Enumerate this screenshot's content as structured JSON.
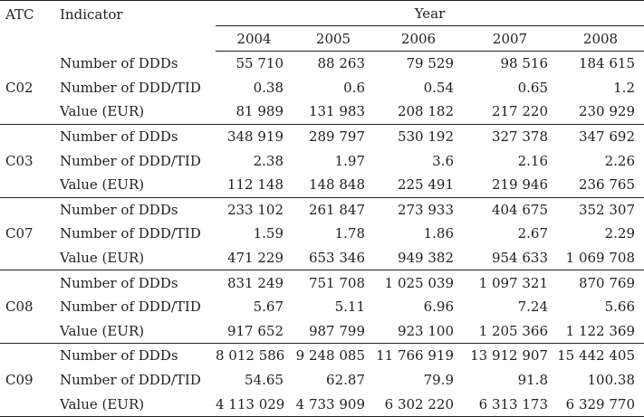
{
  "header": {
    "atc": "ATC",
    "indicator": "Indicator",
    "year": "Year",
    "years": [
      "2004",
      "2005",
      "2006",
      "2007",
      "2008"
    ]
  },
  "groups": [
    {
      "atc": "C02",
      "rows": [
        {
          "indicator": "Number of DDDs",
          "values": [
            "55 710",
            "88 263",
            "79 529",
            "98 516",
            "184 615"
          ]
        },
        {
          "indicator": "Number of DDD/TID",
          "values": [
            "0.38",
            "0.6",
            "0.54",
            "0.65",
            "1.2"
          ]
        },
        {
          "indicator": "Value (EUR)",
          "values": [
            "81 989",
            "131 983",
            "208 182",
            "217 220",
            "230 929"
          ]
        }
      ]
    },
    {
      "atc": "C03",
      "rows": [
        {
          "indicator": "Number of DDDs",
          "values": [
            "348 919",
            "289 797",
            "530 192",
            "327 378",
            "347 692"
          ]
        },
        {
          "indicator": "Number of DDD/TID",
          "values": [
            "2.38",
            "1.97",
            "3.6",
            "2.16",
            "2.26"
          ]
        },
        {
          "indicator": "Value (EUR)",
          "values": [
            "112 148",
            "148 848",
            "225 491",
            "219 946",
            "236 765"
          ]
        }
      ]
    },
    {
      "atc": "C07",
      "rows": [
        {
          "indicator": "Number of DDDs",
          "values": [
            "233 102",
            "261 847",
            "273 933",
            "404 675",
            "352 307"
          ]
        },
        {
          "indicator": "Number of DDD/TID",
          "values": [
            "1.59",
            "1.78",
            "1.86",
            "2.67",
            "2.29"
          ]
        },
        {
          "indicator": "Value (EUR)",
          "values": [
            "471 229",
            "653 346",
            "949 382",
            "954 633",
            "1 069 708"
          ]
        }
      ]
    },
    {
      "atc": "C08",
      "rows": [
        {
          "indicator": "Number of DDDs",
          "values": [
            "831 249",
            "751 708",
            "1 025 039",
            "1 097 321",
            "870 769"
          ]
        },
        {
          "indicator": "Number of DDD/TID",
          "values": [
            "5.67",
            "5.11",
            "6.96",
            "7.24",
            "5.66"
          ]
        },
        {
          "indicator": "Value (EUR)",
          "values": [
            "917 652",
            "987 799",
            "923 100",
            "1 205 366",
            "1 122 369"
          ]
        }
      ]
    },
    {
      "atc": "C09",
      "rows": [
        {
          "indicator": "Number of DDDs",
          "values": [
            "8 012 586",
            "9 248 085",
            "11 766 919",
            "13 912 907",
            "15 442 405"
          ]
        },
        {
          "indicator": "Number of DDD/TID",
          "values": [
            "54.65",
            "62.87",
            "79.9",
            "91.8",
            "100.38"
          ]
        },
        {
          "indicator": "Value (EUR)",
          "values": [
            "4 113 029",
            "4 733 909",
            "6 302 220",
            "6 313 173",
            "6 329 770"
          ]
        }
      ]
    }
  ]
}
